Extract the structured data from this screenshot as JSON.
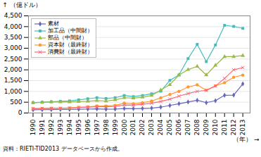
{
  "chart_data": {
    "type": "line",
    "x": [
      1990,
      1991,
      1992,
      1993,
      1994,
      1995,
      1996,
      1997,
      1998,
      1999,
      2000,
      2001,
      2002,
      2003,
      2004,
      2005,
      2006,
      2007,
      2008,
      2009,
      2010,
      2011,
      2012,
      2013
    ],
    "series": [
      {
        "name": "素材",
        "color": "#6666bb",
        "marker": "diamond",
        "values": [
          150,
          155,
          160,
          165,
          165,
          175,
          180,
          190,
          175,
          180,
          205,
          200,
          210,
          225,
          270,
          350,
          430,
          510,
          590,
          480,
          570,
          820,
          830,
          1350
        ]
      },
      {
        "name": "加工品（中間財）",
        "color": "#44bbbb",
        "marker": "square",
        "values": [
          480,
          500,
          520,
          540,
          560,
          610,
          660,
          710,
          670,
          710,
          810,
          760,
          810,
          890,
          1010,
          1510,
          1760,
          2520,
          3180,
          2380,
          3150,
          4060,
          4010,
          3920
        ]
      },
      {
        "name": "部品（中間財）",
        "color": "#99bb44",
        "marker": "triangle",
        "values": [
          480,
          490,
          510,
          510,
          510,
          525,
          545,
          575,
          555,
          610,
          710,
          690,
          730,
          810,
          1060,
          1310,
          1760,
          2010,
          2160,
          1760,
          2210,
          2610,
          2610,
          2660
        ]
      },
      {
        "name": "資本財（最終財）",
        "color": "#ff9933",
        "marker": "circle",
        "values": [
          200,
          210,
          220,
          222,
          232,
          265,
          285,
          325,
          322,
          355,
          455,
          425,
          475,
          555,
          705,
          855,
          1005,
          1205,
          1305,
          1055,
          1255,
          1405,
          1655,
          1755
        ]
      },
      {
        "name": "消費財（最終財）",
        "color": "#ff6677",
        "marker": "x",
        "values": [
          200,
          210,
          215,
          220,
          232,
          252,
          272,
          292,
          292,
          302,
          372,
          362,
          402,
          452,
          532,
          642,
          782,
          902,
          1002,
          1052,
          1252,
          1602,
          2002,
          2102
        ]
      }
    ],
    "xlabel": "（年）",
    "ylabel": "（億ドル）",
    "caption": "資料：RIETI-TID2013 データベースから作成。",
    "xlim": [
      1989.5,
      2013.8
    ],
    "xticks": [
      1990,
      1991,
      1992,
      1993,
      1994,
      1995,
      1996,
      1997,
      1998,
      1999,
      2000,
      2001,
      2002,
      2003,
      2004,
      2005,
      2006,
      2007,
      2008,
      2009,
      2010,
      2011,
      2012,
      2013
    ],
    "ylim": [
      0,
      4500
    ],
    "yticks": [
      0,
      500,
      {
        "value": 1000,
        "label": "1,000"
      },
      {
        "value": 1500,
        "label": "1,500"
      },
      {
        "value": 2000,
        "label": "2,000"
      },
      {
        "value": 2500,
        "label": "2,500"
      },
      {
        "value": 3000,
        "label": "3,000"
      },
      {
        "value": 3500,
        "label": "3,500"
      },
      {
        "value": 4000,
        "label": "4,000"
      },
      {
        "value": 4500,
        "label": "4,500"
      }
    ],
    "grid": "y",
    "legend": "upper-left"
  }
}
